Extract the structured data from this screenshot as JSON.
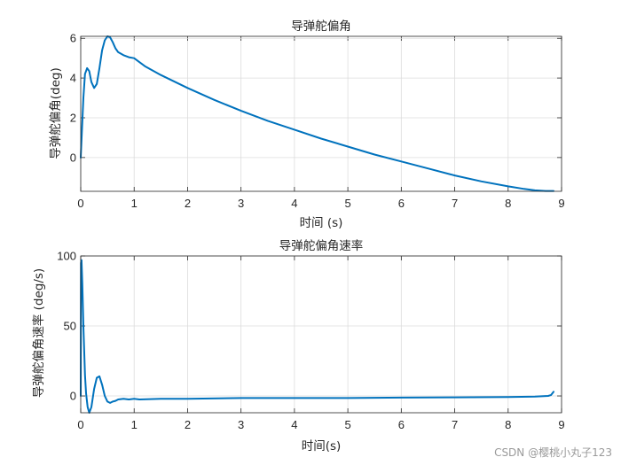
{
  "watermark": "CSDN @樱桃小丸子123",
  "chart_data": [
    {
      "type": "line",
      "title": "导弹舵偏角",
      "xlabel": "时间 (s)",
      "ylabel": "导弹舵偏角(deg)",
      "xlim": [
        0,
        9
      ],
      "ylim": [
        -1.7,
        6.1
      ],
      "xticks": [
        0,
        1,
        2,
        3,
        4,
        5,
        6,
        7,
        8,
        9
      ],
      "yticks": [
        0,
        2,
        4,
        6
      ],
      "grid": true,
      "color": "#0072BD",
      "series": [
        {
          "x": [
            0,
            0.02,
            0.05,
            0.08,
            0.12,
            0.16,
            0.2,
            0.25,
            0.3,
            0.35,
            0.4,
            0.45,
            0.5,
            0.55,
            0.6,
            0.65,
            0.7,
            0.8,
            0.9,
            1.0,
            1.05,
            1.2,
            1.5,
            2.0,
            2.5,
            3.0,
            3.5,
            4.0,
            4.5,
            5.0,
            5.5,
            6.0,
            6.5,
            7.0,
            7.5,
            8.0,
            8.3,
            8.5,
            8.7,
            8.85
          ],
          "y": [
            0,
            1.2,
            3.0,
            4.2,
            4.5,
            4.35,
            3.8,
            3.5,
            3.7,
            4.5,
            5.4,
            5.9,
            6.1,
            6.05,
            5.8,
            5.5,
            5.3,
            5.15,
            5.05,
            5.0,
            4.9,
            4.6,
            4.15,
            3.5,
            2.9,
            2.35,
            1.85,
            1.4,
            0.95,
            0.55,
            0.15,
            -0.2,
            -0.55,
            -0.9,
            -1.2,
            -1.45,
            -1.58,
            -1.65,
            -1.68,
            -1.68
          ]
        }
      ]
    },
    {
      "type": "line",
      "title": "导弹舵偏角速率",
      "xlabel": "时间(s)",
      "ylabel": "导弹舵偏角速率 (deg/s)",
      "xlim": [
        0,
        9
      ],
      "ylim": [
        -12,
        100
      ],
      "xticks": [
        0,
        1,
        2,
        3,
        4,
        5,
        6,
        7,
        8,
        9
      ],
      "yticks": [
        0,
        50,
        100
      ],
      "grid": true,
      "color": "#0072BD",
      "series": [
        {
          "x": [
            0,
            0.005,
            0.015,
            0.03,
            0.05,
            0.08,
            0.1,
            0.13,
            0.16,
            0.2,
            0.25,
            0.3,
            0.35,
            0.4,
            0.45,
            0.5,
            0.55,
            0.6,
            0.65,
            0.7,
            0.8,
            0.9,
            1.0,
            1.1,
            1.5,
            2.0,
            3.0,
            4.0,
            5.0,
            6.0,
            7.0,
            8.0,
            8.5,
            8.75,
            8.8,
            8.83,
            8.85
          ],
          "y": [
            0,
            95,
            97,
            80,
            50,
            15,
            2,
            -8,
            -12,
            -8,
            5,
            13,
            14,
            8,
            0,
            -4,
            -5,
            -4,
            -3.5,
            -2.5,
            -2,
            -2.5,
            -2,
            -2.5,
            -2,
            -2,
            -1.5,
            -1.5,
            -1.5,
            -1.2,
            -1,
            -0.8,
            -0.5,
            0,
            0.6,
            2,
            3
          ]
        }
      ]
    }
  ]
}
